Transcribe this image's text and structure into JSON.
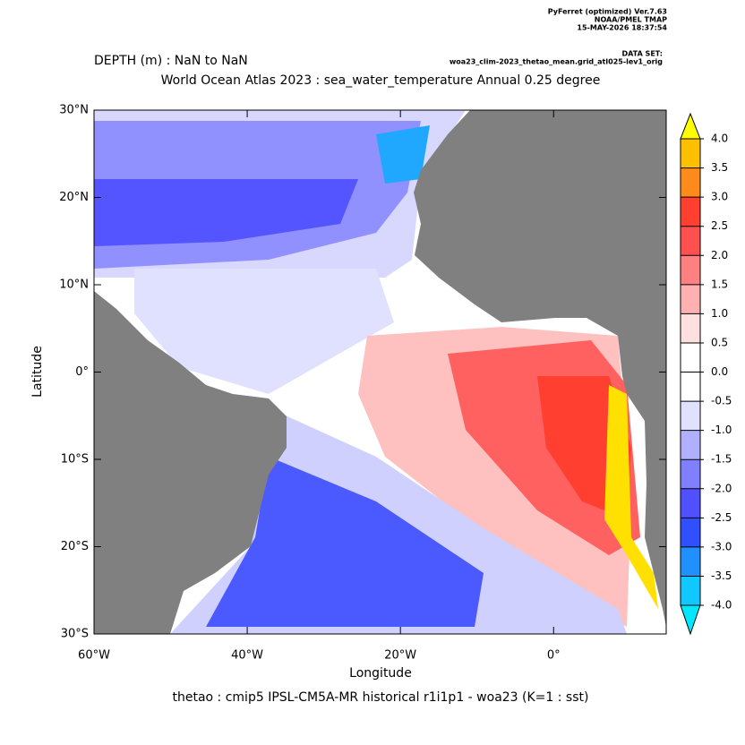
{
  "chart_data": {
    "type": "map",
    "header": [
      "PyFerret (optimized) Ver.7.63",
      "NOAA/PMEL TMAP",
      "15-MAY-2026 18:37:54"
    ],
    "dataset_label": "DATA SET:",
    "dataset": "woa23_clim-2023_thetao_mean.grid_atl025-lev1_orig",
    "subtitle": "DEPTH (m) : NaN to NaN",
    "title": "World Ocean Atlas 2023 : sea_water_temperature Annual  0.25 degree",
    "xlabel": "Longitude",
    "ylabel": "Latitude",
    "caption": "thetao : cmip5 IPSL-CM5A-MR historical r1i1p1 - woa23  (K=1 : sst)",
    "xlim": [
      -60,
      14.7
    ],
    "ylim": [
      -30,
      30
    ],
    "xticks": [
      {
        "value": -60,
        "label": "60°W"
      },
      {
        "value": -40,
        "label": "40°W"
      },
      {
        "value": -20,
        "label": "20°W"
      },
      {
        "value": 0,
        "label": "0°"
      }
    ],
    "yticks": [
      {
        "value": -30,
        "label": "30°S"
      },
      {
        "value": -20,
        "label": "20°S"
      },
      {
        "value": -10,
        "label": "10°S"
      },
      {
        "value": 0,
        "label": "0°"
      },
      {
        "value": 10,
        "label": "10°N"
      },
      {
        "value": 20,
        "label": "20°N"
      },
      {
        "value": 30,
        "label": "30°N"
      }
    ],
    "colorbar": {
      "levels": [
        {
          "value": -4,
          "label": "-4.0"
        },
        -3.5,
        {
          "value": -3,
          "label": "-3.0"
        },
        -2.5,
        {
          "value": -2,
          "label": "-2.0"
        },
        -1.5,
        {
          "value": -1,
          "label": "-1.0"
        },
        -0.5,
        {
          "value": 0,
          "label": "0.0"
        },
        0.5,
        {
          "value": 1,
          "label": "1.0"
        },
        1.5,
        {
          "value": 2,
          "label": "2.0"
        },
        2.5,
        {
          "value": 3,
          "label": "3.0"
        },
        3.5,
        {
          "value": 4,
          "label": "4.0"
        }
      ],
      "colors": [
        "#10c8ff",
        "#2090ff",
        "#3050ff",
        "#5050ff",
        "#8080ff",
        "#b0b0ff",
        "#e0e0ff",
        "#ffffff",
        "#ffffff",
        "#ffe0e0",
        "#ffb0b0",
        "#ff8080",
        "#ff5050",
        "#ff4030",
        "#ff8c1a",
        "#ffc000"
      ],
      "under_color": "#00e8ff",
      "over_color": "#ffff00"
    }
  }
}
